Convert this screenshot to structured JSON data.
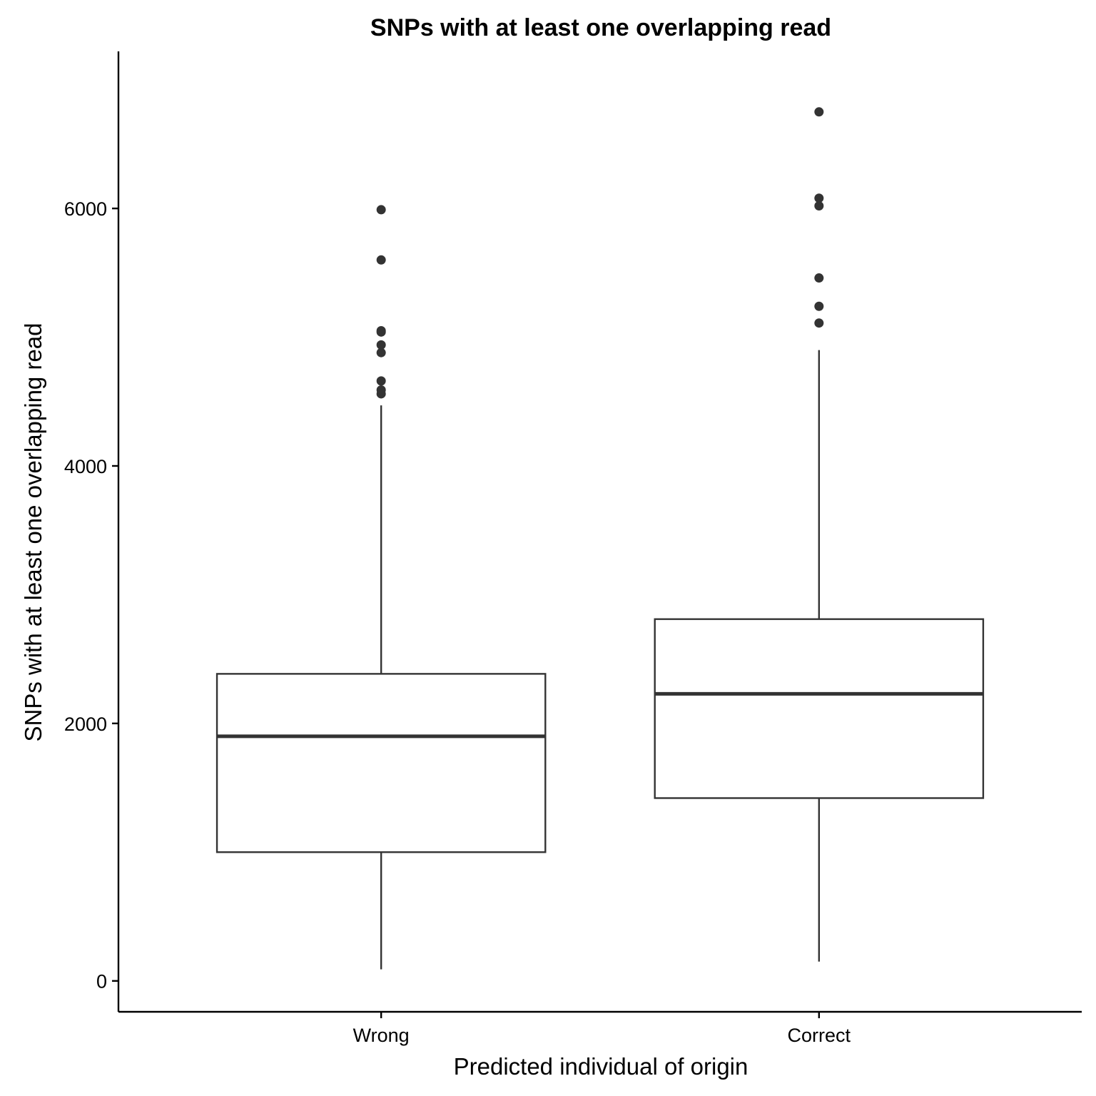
{
  "chart_data": {
    "type": "boxplot",
    "title": "SNPs with at least one overlapping read",
    "xlabel": "Predicted individual of origin",
    "ylabel": "SNPs with at least one overlapping read",
    "categories": [
      "Wrong",
      "Correct"
    ],
    "ylim": [
      -240,
      7220
    ],
    "yticks": [
      0,
      2000,
      4000,
      6000
    ],
    "grid": false,
    "legend": "none",
    "boxes": [
      {
        "category": "Wrong",
        "whisker_low": 90,
        "q1": 1000,
        "median": 1900,
        "q3": 2385,
        "whisker_high": 4470,
        "outliers": [
          4560,
          4590,
          4660,
          4880,
          4940,
          5040,
          5050,
          5600,
          5990
        ]
      },
      {
        "category": "Correct",
        "whisker_low": 150,
        "q1": 1420,
        "median": 2230,
        "q3": 2810,
        "whisker_high": 4900,
        "outliers": [
          5110,
          5240,
          5460,
          6020,
          6080,
          6750
        ]
      }
    ]
  },
  "colors": {
    "box_stroke": "#333333",
    "box_fill": "#ffffff",
    "axis": "#000000"
  }
}
